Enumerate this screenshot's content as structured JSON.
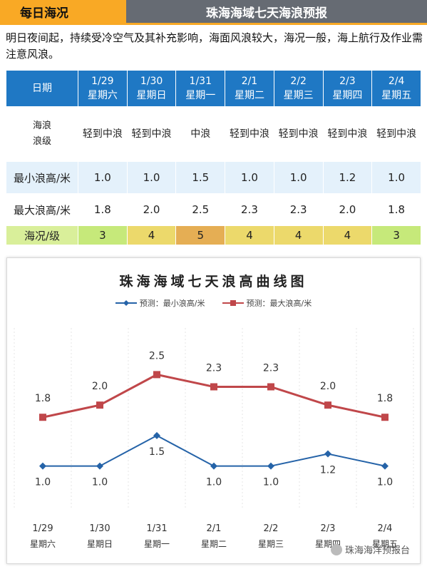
{
  "header": {
    "left_title": "每日海况",
    "right_title": "珠海海域七天海浪预报"
  },
  "intro": "明日夜间起，持续受冷空气及其补充影响，海面风浪较大，海况一般，海上航行及作业需注意风浪。",
  "table": {
    "date_label": "日期",
    "level_label_1": "海浪",
    "level_label_2": "浪级",
    "min_label": "最小浪高/米",
    "max_label": "最大浪高/米",
    "sea_label": "海况/级",
    "days": [
      {
        "date": "1/29",
        "weekday": "星期六",
        "level": "轻到中浪",
        "min": "1.0",
        "max": "1.8",
        "sea": "3",
        "sea_color": "#c6e97a"
      },
      {
        "date": "1/30",
        "weekday": "星期日",
        "level": "轻到中浪",
        "min": "1.0",
        "max": "2.0",
        "sea": "4",
        "sea_color": "#ecd96b"
      },
      {
        "date": "1/31",
        "weekday": "星期一",
        "level": "中浪",
        "min": "1.5",
        "max": "2.5",
        "sea": "5",
        "sea_color": "#e5ae54"
      },
      {
        "date": "2/1",
        "weekday": "星期二",
        "level": "轻到中浪",
        "min": "1.0",
        "max": "2.3",
        "sea": "4",
        "sea_color": "#ecd96b"
      },
      {
        "date": "2/2",
        "weekday": "星期三",
        "level": "轻到中浪",
        "min": "1.0",
        "max": "2.3",
        "sea": "4",
        "sea_color": "#ecd96b"
      },
      {
        "date": "2/3",
        "weekday": "星期四",
        "level": "轻到中浪",
        "min": "1.2",
        "max": "2.0",
        "sea": "4",
        "sea_color": "#ecd96b"
      },
      {
        "date": "2/4",
        "weekday": "星期五",
        "level": "轻到中浪",
        "min": "1.0",
        "max": "1.8",
        "sea": "3",
        "sea_color": "#c6e97a"
      }
    ],
    "header_color": "#1f78c4",
    "sea_label_color": "#d9ef9a"
  },
  "chart_data": {
    "type": "line",
    "title": "珠海海域七天浪高曲线图",
    "categories": [
      "1/29",
      "1/30",
      "1/31",
      "2/1",
      "2/2",
      "2/3",
      "2/4"
    ],
    "category_sublabels": [
      "星期六",
      "星期日",
      "星期一",
      "星期二",
      "星期三",
      "星期四",
      "星期五"
    ],
    "series": [
      {
        "name": "预测：最小浪高/米",
        "values": [
          1.0,
          1.0,
          1.5,
          1.0,
          1.0,
          1.2,
          1.0
        ],
        "color": "#2563a8",
        "marker": "diamond"
      },
      {
        "name": "预测：最大浪高/米",
        "values": [
          1.8,
          2.0,
          2.5,
          2.3,
          2.3,
          2.0,
          1.8
        ],
        "color": "#c0474a",
        "marker": "square"
      }
    ],
    "ylim": [
      0.2,
      3.3
    ],
    "grid": false,
    "legend_position": "top"
  },
  "watermark": {
    "text": "珠海海洋预报台",
    "icon": "wechat-icon"
  }
}
